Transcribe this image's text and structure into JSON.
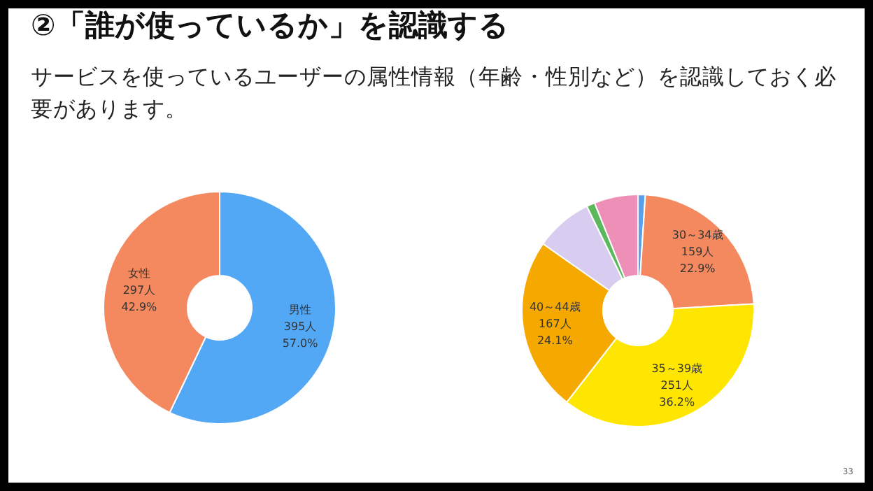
{
  "chart_data": [
    {
      "type": "donut",
      "title": "②「誰が使っているか」を認識する",
      "subtitle": "サービスを使っているユーザーの属性情報（年齢・性別など）を認識しておく必要があります。",
      "categories": [
        "男性",
        "女性"
      ],
      "values": [
        395,
        297
      ],
      "colors": [
        "#52a8f5",
        "#f4895f"
      ],
      "value_labels": [
        "395人\n57.0%",
        "297人\n42.9%"
      ]
    },
    {
      "type": "donut",
      "categories": [
        null,
        "30～34歳",
        "35～39歳",
        "40～44歳",
        null,
        null,
        null
      ],
      "values": [
        7,
        159,
        251,
        167,
        55,
        8,
        42
      ],
      "colors": [
        "#5aa0ee",
        "#f4895f",
        "#ffe600",
        "#f5a800",
        "#d8cdf0",
        "#5cb85c",
        "#ee8fb8"
      ],
      "value_labels": [
        null,
        "159人\n22.9%",
        "251人\n36.2%",
        "167人\n24.1%",
        null,
        null,
        null
      ],
      "annotations": [
        "33"
      ]
    }
  ]
}
